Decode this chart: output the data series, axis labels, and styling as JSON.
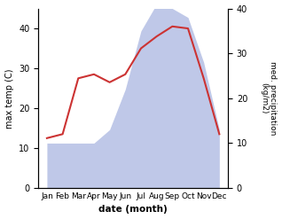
{
  "months": [
    "Jan",
    "Feb",
    "Mar",
    "Apr",
    "May",
    "Jun",
    "Jul",
    "Aug",
    "Sep",
    "Oct",
    "Nov",
    "Dec"
  ],
  "temp": [
    12.5,
    13.5,
    27.5,
    28.5,
    26.5,
    28.5,
    35.0,
    38.0,
    40.5,
    40.0,
    27.5,
    13.5
  ],
  "precip": [
    10,
    10,
    10,
    10,
    13,
    22,
    35,
    41,
    40,
    38,
    28,
    13
  ],
  "temp_color": "#cc3333",
  "precip_fill_color": "#bfc8e8",
  "title": "",
  "xlabel": "date (month)",
  "ylabel_left": "max temp (C)",
  "ylabel_right": "med. precipitation\n(kg/m2)",
  "ylim_left": [
    0,
    45
  ],
  "ylim_right": [
    0,
    40
  ],
  "yticks_left": [
    0,
    10,
    20,
    30,
    40
  ],
  "yticks_right": [
    0,
    10,
    20,
    30,
    40
  ],
  "bg_color": "#ffffff"
}
